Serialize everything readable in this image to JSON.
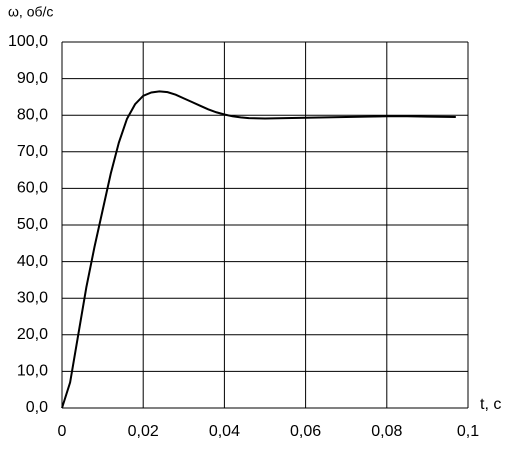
{
  "chart_data": {
    "type": "line",
    "y_axis_label": "ω, об/с",
    "x_axis_label": "t, c",
    "x": [
      0,
      0.002,
      0.004,
      0.006,
      0.008,
      0.01,
      0.012,
      0.014,
      0.016,
      0.018,
      0.02,
      0.022,
      0.024,
      0.026,
      0.028,
      0.03,
      0.032,
      0.034,
      0.036,
      0.038,
      0.04,
      0.042,
      0.044,
      0.046,
      0.05,
      0.055,
      0.06,
      0.065,
      0.07,
      0.075,
      0.08,
      0.085,
      0.09,
      0.097
    ],
    "series": [
      {
        "name": "ω",
        "color": "#000000",
        "values": [
          0,
          7,
          20,
          33,
          44,
          54,
          64,
          72.5,
          79,
          83,
          85.3,
          86.2,
          86.5,
          86.3,
          85.6,
          84.6,
          83.6,
          82.6,
          81.6,
          80.8,
          80.2,
          79.7,
          79.4,
          79.2,
          79.1,
          79.2,
          79.3,
          79.4,
          79.5,
          79.6,
          79.7,
          79.7,
          79.6,
          79.5
        ]
      }
    ],
    "xlim": [
      0,
      0.1
    ],
    "xticks": [
      0,
      {
        "value": 0.02,
        "label": "0,02"
      },
      {
        "value": 0.04,
        "label": "0,04"
      },
      {
        "value": 0.06,
        "label": "0,06"
      },
      {
        "value": 0.08,
        "label": "0,08"
      },
      {
        "value": 0.1,
        "label": "0,1"
      }
    ],
    "ylim": [
      0,
      100
    ],
    "yticks": [
      {
        "value": 0,
        "label": "0,0"
      },
      {
        "value": 10,
        "label": "10,0"
      },
      {
        "value": 20,
        "label": "20,0"
      },
      {
        "value": 30,
        "label": "30,0"
      },
      {
        "value": 40,
        "label": "40,0"
      },
      {
        "value": 50,
        "label": "50,0"
      },
      {
        "value": 60,
        "label": "60,0"
      },
      {
        "value": 70,
        "label": "70,0"
      },
      {
        "value": 80,
        "label": "80,0"
      },
      {
        "value": 90,
        "label": "90,0"
      },
      {
        "value": 100,
        "label": "100,0"
      }
    ],
    "grid": true
  }
}
